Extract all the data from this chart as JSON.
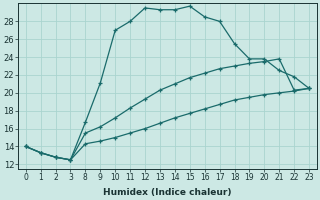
{
  "xlabel": "Humidex (Indice chaleur)",
  "bg_color": "#cce8e4",
  "line_color": "#1a6b6b",
  "grid_color": "#aad4cf",
  "x_values": [
    0,
    1,
    2,
    3,
    8,
    9,
    10,
    11,
    12,
    13,
    14,
    15,
    16,
    17,
    18,
    19,
    20,
    21,
    22,
    23
  ],
  "x_indices": [
    0,
    1,
    2,
    3,
    4,
    5,
    6,
    7,
    8,
    9,
    10,
    11,
    12,
    13,
    14,
    15,
    16,
    17,
    18,
    19
  ],
  "line1_y": [
    14.0,
    13.3,
    12.8,
    12.5,
    16.7,
    21.1,
    27.0,
    28.0,
    29.5,
    29.3,
    29.3,
    29.7,
    28.5,
    28.0,
    25.5,
    23.8,
    23.8,
    22.5,
    21.8,
    20.5
  ],
  "line2_y": [
    14.0,
    13.3,
    12.8,
    12.5,
    15.5,
    16.2,
    17.2,
    18.3,
    19.3,
    20.3,
    21.0,
    21.7,
    22.2,
    22.7,
    23.0,
    23.3,
    23.5,
    23.8,
    20.3,
    20.5
  ],
  "line3_y": [
    14.0,
    13.3,
    12.8,
    12.5,
    14.3,
    14.6,
    15.0,
    15.5,
    16.0,
    16.6,
    17.2,
    17.7,
    18.2,
    18.7,
    19.2,
    19.5,
    19.8,
    20.0,
    20.2,
    20.5
  ],
  "yticks": [
    12,
    14,
    16,
    18,
    20,
    22,
    24,
    26,
    28
  ],
  "ylim": [
    11.5,
    30.0
  ],
  "xlabel_fontsize": 6.5,
  "tick_fontsize": 5.5,
  "ytick_fontsize": 6.0
}
